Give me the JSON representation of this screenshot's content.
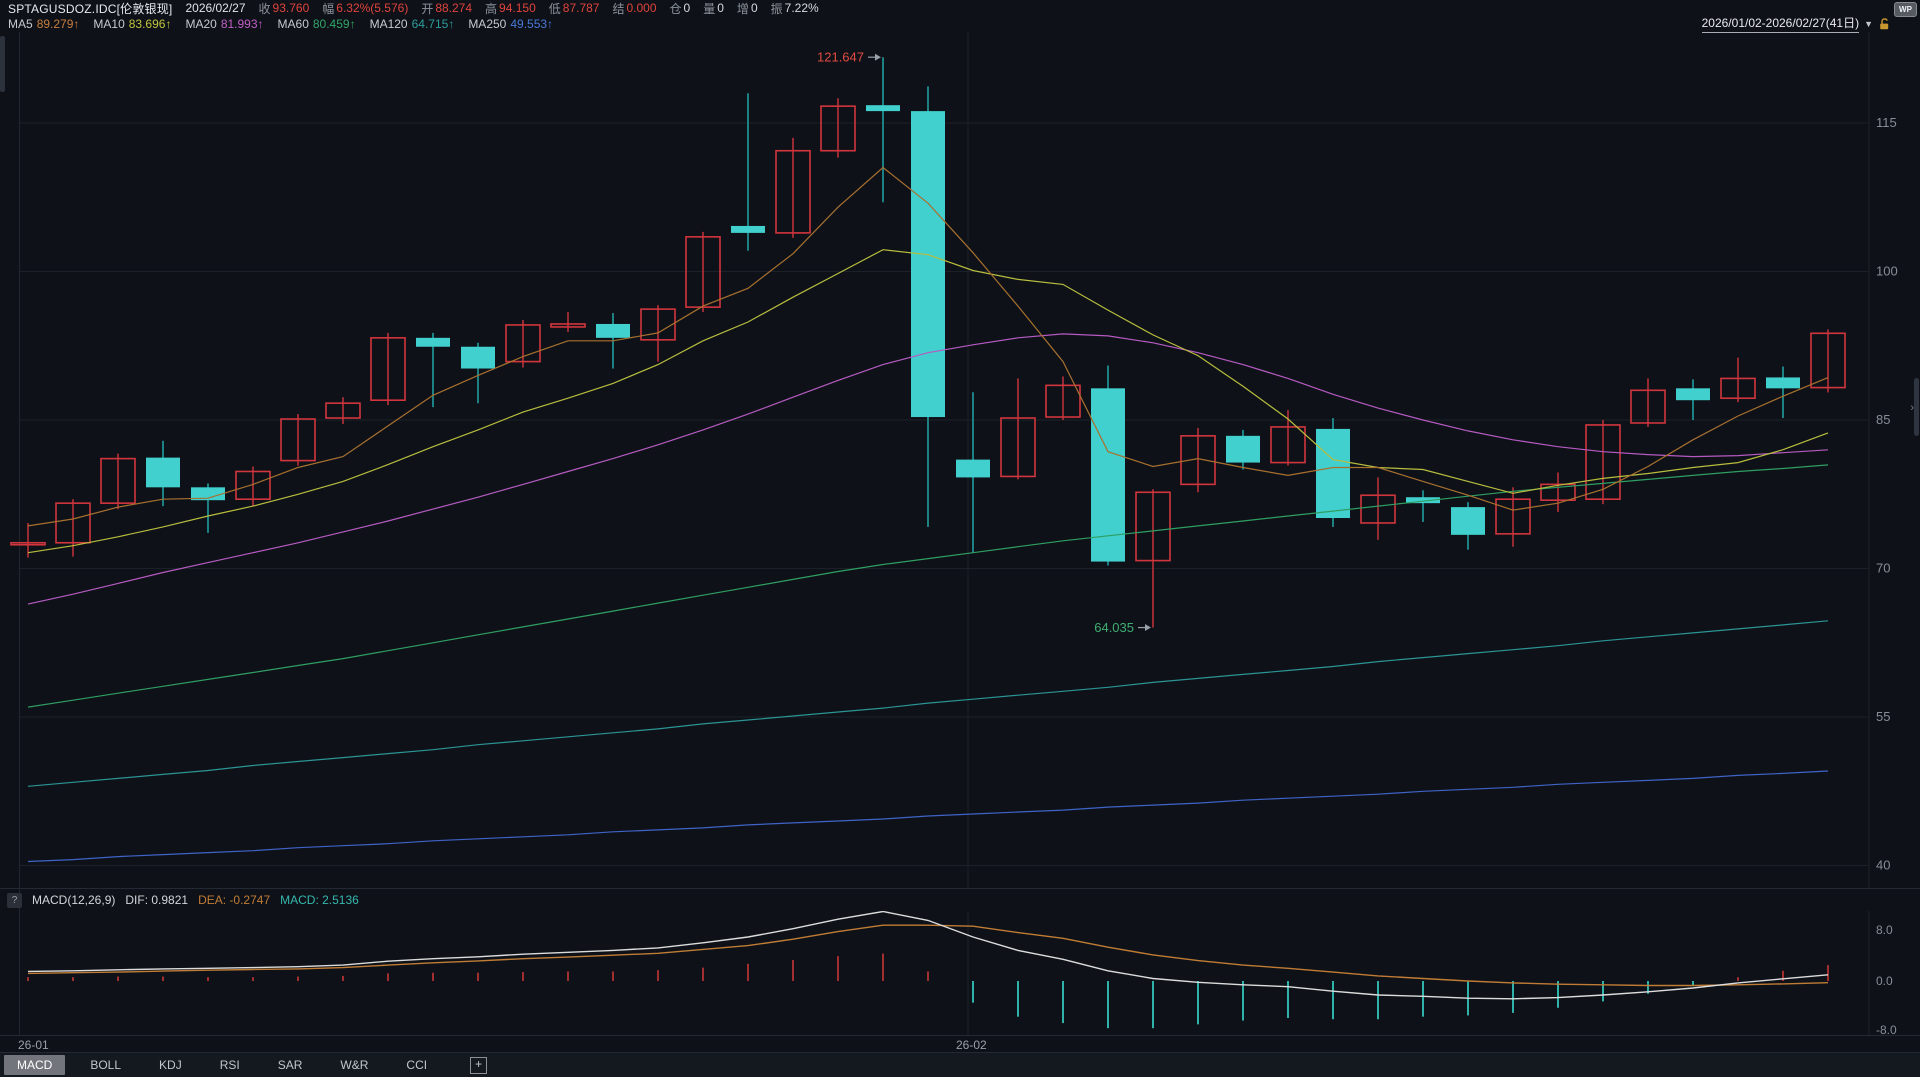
{
  "header": {
    "symbol": "SPTAGUSDOZ.IDC[伦敦银现]",
    "date": "2026/02/27",
    "fields": [
      {
        "label": "收",
        "value": "93.760",
        "color": "#e0433c"
      },
      {
        "label": "幅",
        "value": "6.32%(5.576)",
        "color": "#e0433c"
      },
      {
        "label": "开",
        "value": "88.274",
        "color": "#e0433c"
      },
      {
        "label": "高",
        "value": "94.150",
        "color": "#e0433c"
      },
      {
        "label": "低",
        "value": "87.787",
        "color": "#e0433c"
      },
      {
        "label": "结",
        "value": "0.000",
        "color": "#e0433c"
      },
      {
        "label": "仓",
        "value": "0",
        "color": "#d6d9dd"
      },
      {
        "label": "量",
        "value": "0",
        "color": "#d6d9dd"
      },
      {
        "label": "增",
        "value": "0",
        "color": "#d6d9dd"
      },
      {
        "label": "振",
        "value": "7.22%",
        "color": "#d6d9dd"
      }
    ],
    "wp_badge": "WP"
  },
  "ma_bar": {
    "items": [
      {
        "label": "MA5",
        "value": "89.279↑",
        "color": "#c87f3e"
      },
      {
        "label": "MA10",
        "value": "83.696↑",
        "color": "#c2c43e"
      },
      {
        "label": "MA20",
        "value": "81.993↑",
        "color": "#c25fc8",
        "note": "81.993"
      },
      {
        "label": "MA60",
        "value": "80.459↑",
        "color": "#31a468"
      },
      {
        "label": "MA120",
        "value": "64.715↑",
        "color": "#2e9c9c"
      },
      {
        "label": "MA250",
        "value": "49.553↑",
        "color": "#4a79d8"
      }
    ],
    "range": "2026/01/02-2026/02/27(41日)",
    "caret": "▼"
  },
  "indicator_row": {
    "help": "?",
    "name": "MACD(12,26,9)",
    "dif_label": "DIF: 0.9821",
    "dea_label": "DEA: -0.2747",
    "macd_label": "MACD: 2.5136",
    "dif_color": "#d3d6da",
    "dea_color": "#c07c35",
    "macd_color": "#36b8ae"
  },
  "xaxis": {
    "labels": [
      {
        "text": "26-01",
        "x": 18
      },
      {
        "text": "26-02",
        "x": 956
      }
    ]
  },
  "tabs": {
    "items": [
      "MACD",
      "BOLL",
      "KDJ",
      "RSI",
      "SAR",
      "W&R",
      "CCI"
    ],
    "active": "MACD",
    "add": "+"
  },
  "chart_data": [
    {
      "type": "candlestick",
      "title": "SPTAGUSDOZ.IDC 伦敦银现 daily 2026/01/02-2026/02/27",
      "count": 41,
      "y_ticks": [
        115,
        100,
        85,
        70,
        55,
        40
      ],
      "ylim": [
        39,
        124
      ],
      "grid": true,
      "month_gridline_index": 21,
      "up_color": "#d2353d",
      "down_color": "#41d0cd",
      "down_wick_color": "#1d8083",
      "candles": [
        [
          72.4,
          74.6,
          71.1,
          72.6
        ],
        [
          72.6,
          77.0,
          71.2,
          76.6
        ],
        [
          76.6,
          81.6,
          76.0,
          81.1
        ],
        [
          81.2,
          82.9,
          76.3,
          78.2
        ],
        [
          78.2,
          78.6,
          73.6,
          76.9
        ],
        [
          77.0,
          80.3,
          76.3,
          79.8
        ],
        [
          80.9,
          85.6,
          80.4,
          85.1
        ],
        [
          85.2,
          87.3,
          84.6,
          86.7
        ],
        [
          87.0,
          93.8,
          86.5,
          93.3
        ],
        [
          93.3,
          93.8,
          86.3,
          92.4
        ],
        [
          92.4,
          92.8,
          86.7,
          90.2
        ],
        [
          90.9,
          95.1,
          90.3,
          94.6
        ],
        [
          94.4,
          95.9,
          93.9,
          94.7
        ],
        [
          94.7,
          95.8,
          90.2,
          93.3
        ],
        [
          93.1,
          96.6,
          90.9,
          96.2
        ],
        [
          96.4,
          104.0,
          95.9,
          103.5
        ],
        [
          104.6,
          118.0,
          102.1,
          103.9
        ],
        [
          103.9,
          113.5,
          103.4,
          112.2
        ],
        [
          112.2,
          117.5,
          111.5,
          116.7
        ],
        [
          116.8,
          121.647,
          107.0,
          116.2
        ],
        [
          116.2,
          118.7,
          74.2,
          85.3
        ],
        [
          81.0,
          87.8,
          71.6,
          79.2
        ],
        [
          79.3,
          89.2,
          79.0,
          85.2
        ],
        [
          85.3,
          89.4,
          85.0,
          88.5
        ],
        [
          88.2,
          90.5,
          70.3,
          70.7
        ],
        [
          70.8,
          78.0,
          64.035,
          77.7
        ],
        [
          78.5,
          84.2,
          77.7,
          83.4
        ],
        [
          83.4,
          84.0,
          80.0,
          80.7
        ],
        [
          80.7,
          86.0,
          80.4,
          84.3
        ],
        [
          84.1,
          85.2,
          74.2,
          75.1
        ],
        [
          74.6,
          79.2,
          72.9,
          77.4
        ],
        [
          77.2,
          77.9,
          74.7,
          76.6
        ],
        [
          76.2,
          76.7,
          71.9,
          73.4
        ],
        [
          73.5,
          78.2,
          72.2,
          77.0
        ],
        [
          76.9,
          79.7,
          75.7,
          78.5
        ],
        [
          77.0,
          85.0,
          76.5,
          84.5
        ],
        [
          84.7,
          89.2,
          84.3,
          88.0
        ],
        [
          88.2,
          89.1,
          85.0,
          87.0
        ],
        [
          87.2,
          91.3,
          86.8,
          89.2
        ],
        [
          89.3,
          90.4,
          85.2,
          88.2
        ],
        [
          88.274,
          94.15,
          87.787,
          93.76
        ]
      ],
      "ma_series": [
        {
          "name": "MA250",
          "color": "#3f63c8",
          "values": [
            40.4,
            40.6,
            40.9,
            41.1,
            41.3,
            41.5,
            41.8,
            42.0,
            42.2,
            42.5,
            42.7,
            42.9,
            43.1,
            43.4,
            43.6,
            43.8,
            44.1,
            44.3,
            44.5,
            44.7,
            45.0,
            45.2,
            45.4,
            45.6,
            45.9,
            46.1,
            46.3,
            46.6,
            46.8,
            47.0,
            47.2,
            47.5,
            47.7,
            47.9,
            48.2,
            48.4,
            48.6,
            48.8,
            49.1,
            49.3,
            49.55
          ]
        },
        {
          "name": "MA120",
          "color": "#2b9494",
          "values": [
            48.0,
            48.4,
            48.8,
            49.2,
            49.6,
            50.1,
            50.5,
            50.9,
            51.3,
            51.7,
            52.2,
            52.6,
            53.0,
            53.4,
            53.8,
            54.3,
            54.7,
            55.1,
            55.5,
            55.9,
            56.4,
            56.8,
            57.2,
            57.6,
            58.0,
            58.5,
            58.9,
            59.3,
            59.7,
            60.1,
            60.6,
            61.0,
            61.4,
            61.8,
            62.2,
            62.7,
            63.1,
            63.5,
            63.9,
            64.3,
            64.72
          ]
        },
        {
          "name": "MA60",
          "color": "#2f9e62",
          "values": [
            56.0,
            56.7,
            57.4,
            58.1,
            58.8,
            59.5,
            60.2,
            60.9,
            61.7,
            62.5,
            63.3,
            64.1,
            64.9,
            65.7,
            66.5,
            67.3,
            68.1,
            68.9,
            69.7,
            70.4,
            71.0,
            71.6,
            72.2,
            72.8,
            73.3,
            73.8,
            74.3,
            74.8,
            75.3,
            75.8,
            76.3,
            76.8,
            77.3,
            77.8,
            78.2,
            78.6,
            79.0,
            79.4,
            79.8,
            80.1,
            80.46
          ]
        },
        {
          "name": "MA20",
          "color": "#b65ac2",
          "values": [
            66.4,
            67.4,
            68.5,
            69.6,
            70.6,
            71.6,
            72.6,
            73.7,
            74.8,
            76.0,
            77.2,
            78.5,
            79.8,
            81.1,
            82.5,
            84.0,
            85.6,
            87.3,
            89.0,
            90.6,
            91.8,
            92.6,
            93.3,
            93.7,
            93.5,
            92.8,
            91.8,
            90.6,
            89.2,
            87.6,
            86.2,
            85.0,
            83.9,
            83.0,
            82.3,
            81.8,
            81.5,
            81.3,
            81.4,
            81.7,
            81.99
          ]
        },
        {
          "name": "MA10",
          "color": "#b8bd3e",
          "values": [
            71.6,
            72.3,
            73.2,
            74.2,
            75.3,
            76.3,
            77.5,
            78.8,
            80.5,
            82.3,
            84.0,
            85.8,
            87.2,
            88.7,
            90.6,
            93.0,
            94.9,
            97.4,
            99.8,
            102.2,
            101.7,
            100.1,
            99.2,
            98.7,
            96.1,
            93.6,
            91.5,
            88.4,
            85.1,
            81.0,
            80.2,
            80.0,
            78.8,
            77.6,
            78.4,
            79.1,
            79.6,
            80.2,
            80.7,
            82.0,
            83.7
          ]
        },
        {
          "name": "MA5",
          "color": "#a8702f",
          "values": [
            74.3,
            75.0,
            76.2,
            77.0,
            77.1,
            78.5,
            80.2,
            81.3,
            84.4,
            87.5,
            89.5,
            91.4,
            93.0,
            93.0,
            93.8,
            96.5,
            98.3,
            101.8,
            106.5,
            110.5,
            106.9,
            101.9,
            96.5,
            90.9,
            81.8,
            80.3,
            81.1,
            80.2,
            79.4,
            80.2,
            80.2,
            78.8,
            77.4,
            75.9,
            76.6,
            78.0,
            80.3,
            83.0,
            85.4,
            87.4,
            89.28
          ]
        }
      ],
      "annotations": [
        {
          "text": "121.647",
          "index": 19,
          "price": 121.647,
          "color": "#e14b41"
        },
        {
          "text": "64.035",
          "index": 25,
          "price": 64.035,
          "color": "#3fae73"
        }
      ]
    },
    {
      "type": "macd",
      "y_ticks": [
        "8.0",
        "0.0",
        "-8.0"
      ],
      "ylim": [
        -9.5,
        10
      ],
      "dif_color": "#dcdcdc",
      "dea_color": "#c07c35",
      "pos_color": "#a12f2f",
      "neg_color": "#2fb3a9",
      "dif": [
        1.5,
        1.6,
        1.75,
        1.9,
        2.0,
        2.1,
        2.25,
        2.5,
        3.1,
        3.5,
        3.8,
        4.2,
        4.5,
        4.8,
        5.2,
        6.0,
        6.9,
        8.2,
        9.7,
        10.9,
        9.5,
        6.9,
        4.8,
        3.4,
        1.6,
        0.4,
        -0.2,
        -0.6,
        -0.9,
        -1.6,
        -2.2,
        -2.4,
        -2.7,
        -2.8,
        -2.6,
        -2.2,
        -1.7,
        -1.1,
        -0.3,
        0.35,
        0.98
      ],
      "dea": [
        1.2,
        1.3,
        1.4,
        1.55,
        1.7,
        1.8,
        1.9,
        2.1,
        2.5,
        2.85,
        3.15,
        3.5,
        3.75,
        4.05,
        4.35,
        4.95,
        5.55,
        6.55,
        7.75,
        8.75,
        8.75,
        8.6,
        7.6,
        6.7,
        5.3,
        4.1,
        3.2,
        2.5,
        2.0,
        1.4,
        0.8,
        0.4,
        0.0,
        -0.3,
        -0.5,
        -0.6,
        -0.7,
        -0.7,
        -0.6,
        -0.45,
        -0.27
      ],
      "hist": [
        0.6,
        0.6,
        0.7,
        0.7,
        0.6,
        0.6,
        0.7,
        0.8,
        1.2,
        1.3,
        1.3,
        1.4,
        1.5,
        1.5,
        1.7,
        2.1,
        2.7,
        3.3,
        3.9,
        4.3,
        1.5,
        -3.4,
        -5.6,
        -6.6,
        -7.4,
        -7.4,
        -6.8,
        -6.2,
        -5.8,
        -6.0,
        -6.0,
        -5.6,
        -5.4,
        -5.0,
        -4.2,
        -3.2,
        -2.0,
        -0.8,
        0.6,
        1.6,
        2.5
      ]
    }
  ]
}
